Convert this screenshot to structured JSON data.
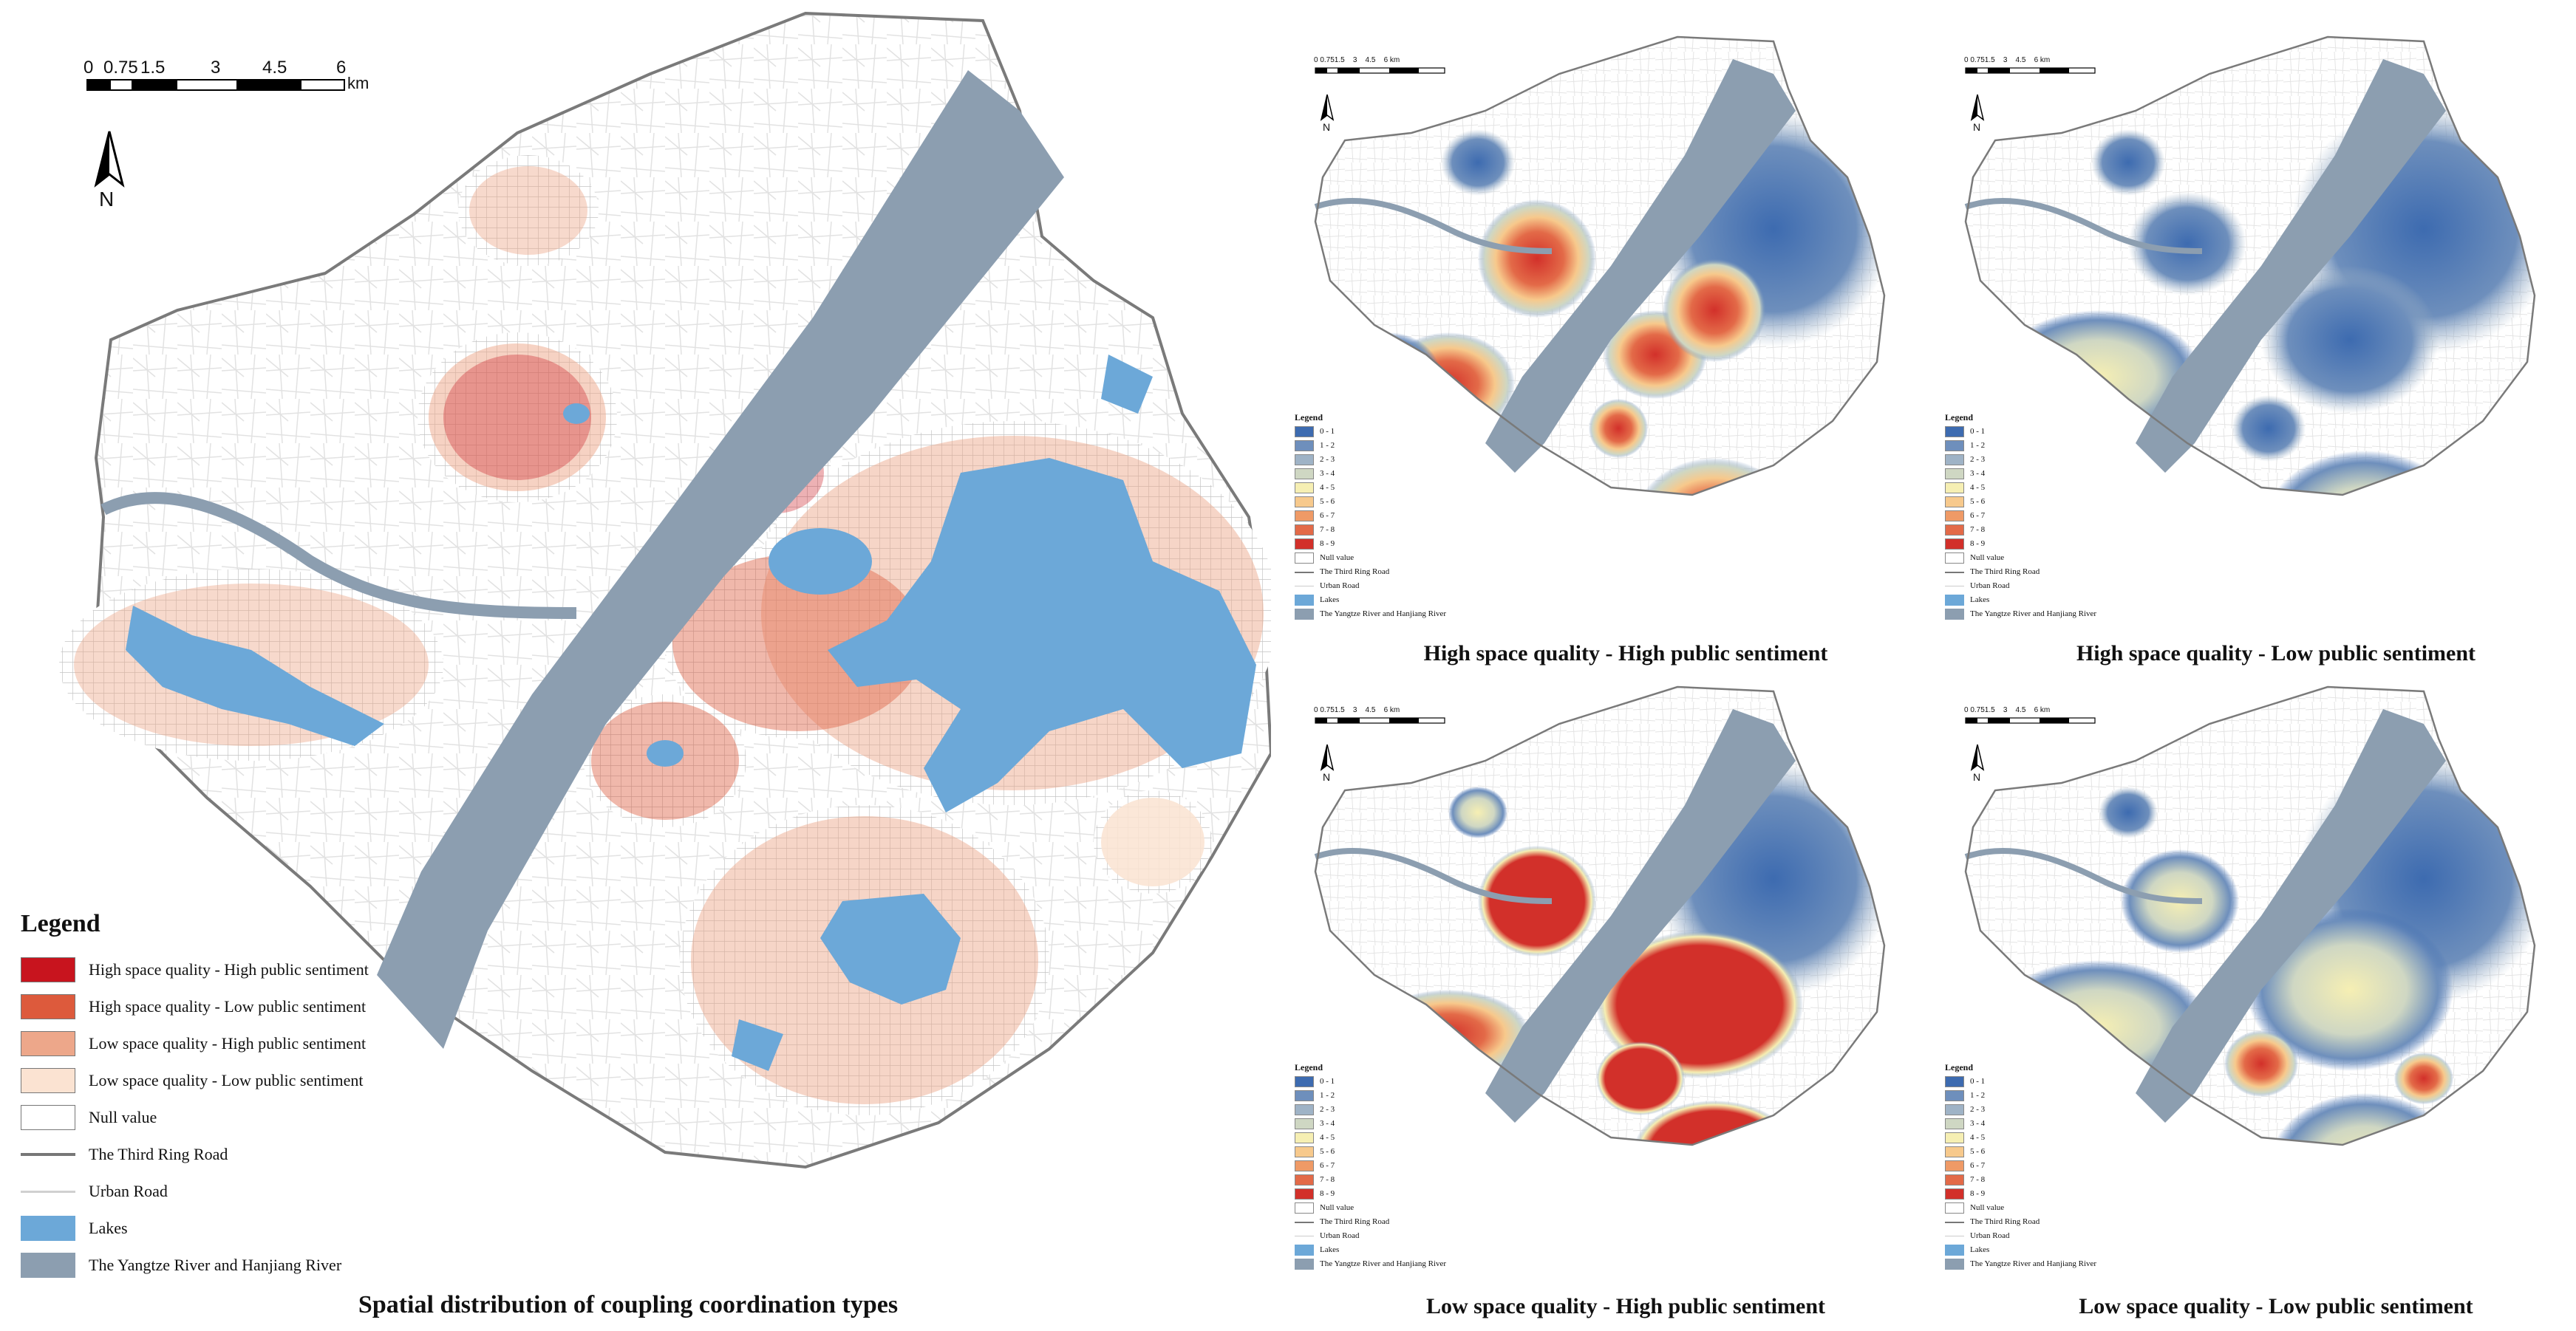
{
  "main_map": {
    "caption": "Spatial distribution of coupling coordination types",
    "scale_ticks": [
      "0",
      "0.75",
      "1.5",
      "3",
      "4.5",
      "6"
    ],
    "scale_unit": "km",
    "north_label": "N"
  },
  "legend": {
    "title": "Legend",
    "items": [
      {
        "label": "High space quality - High public sentiment",
        "color": "#c8141e"
      },
      {
        "label": "High space quality - Low public sentiment",
        "color": "#dd5a3c"
      },
      {
        "label": "Low space quality - High public sentiment",
        "color": "#eda78a"
      },
      {
        "label": "Low space quality - Low public sentiment",
        "color": "#fbe3d2"
      },
      {
        "label": "Null value",
        "color": "#ffffff"
      }
    ],
    "lines": [
      {
        "label": "The Third Ring Road",
        "color": "#777777"
      },
      {
        "label": "Urban Road",
        "color": "#d0d0d0"
      }
    ],
    "areas": [
      {
        "label": "Lakes",
        "color": "#6ca8d8"
      },
      {
        "label": "The Yangtze River and Hanjiang River",
        "color": "#8c9eb0"
      }
    ]
  },
  "small_legend": {
    "title": "Legend",
    "classes": [
      {
        "label": "0 - 1",
        "color": "#3d6bb0"
      },
      {
        "label": "1 - 2",
        "color": "#6e8fbc"
      },
      {
        "label": "2 - 3",
        "color": "#9fb3c6"
      },
      {
        "label": "3 - 4",
        "color": "#cfd7c3"
      },
      {
        "label": "4 - 5",
        "color": "#f6efb3"
      },
      {
        "label": "5 - 6",
        "color": "#f7c98c"
      },
      {
        "label": "6 - 7",
        "color": "#ef9a66"
      },
      {
        "label": "7 - 8",
        "color": "#e36a48"
      },
      {
        "label": "8 - 9",
        "color": "#d2302a"
      }
    ],
    "null_label": "Null value",
    "ring_road_label": "The Third Ring Road",
    "urban_road_label": "Urban Road",
    "lakes_label": "Lakes",
    "rivers_label": "The Yangtze River and Hanjiang River",
    "scale_ticks": [
      "0",
      "0.751.5",
      "3",
      "4.5",
      "6"
    ],
    "scale_unit": "km",
    "north_label": "N"
  },
  "panels": [
    {
      "caption": "High space quality - High public sentiment"
    },
    {
      "caption": "High space quality - Low public sentiment"
    },
    {
      "caption": "Low space quality - High public sentiment"
    },
    {
      "caption": "Low space quality - Low public sentiment"
    }
  ]
}
